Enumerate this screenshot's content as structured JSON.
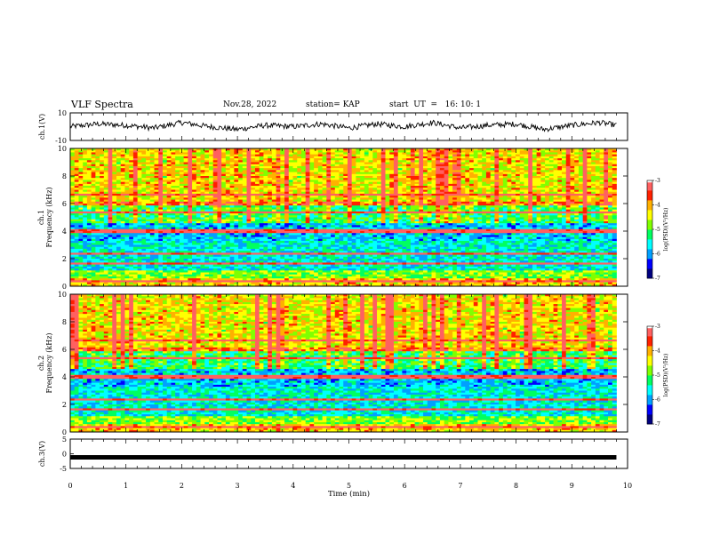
{
  "header": {
    "title": "VLF Spectra",
    "date": "Nov.28, 2022",
    "station": "station= KAP",
    "start": "start  UT  =   16: 10: 1"
  },
  "colors": {
    "colormap": [
      "#000080",
      "#0000ff",
      "#00a0ff",
      "#00ffff",
      "#00ff60",
      "#80ff00",
      "#ffff00",
      "#ffb000",
      "#ff2000",
      "#ff6060",
      "#ffffff"
    ],
    "trace": "#000000"
  },
  "chart_data": [
    {
      "type": "line",
      "panel": "ch1",
      "ylabel": "ch.1(V)",
      "ylim": [
        -10,
        10
      ],
      "yticks": [
        "10",
        "-10"
      ],
      "xlim": [
        0,
        10
      ],
      "description_values": "waveform oscillating roughly between -5 and 5 V over 0-9.8 min",
      "x": [
        0,
        0.5,
        1,
        1.5,
        2,
        2.5,
        3,
        3.5,
        4,
        4.5,
        5,
        5.5,
        6,
        6.5,
        7,
        7.5,
        8,
        8.5,
        9,
        9.5,
        9.8
      ],
      "y": [
        0,
        2,
        1,
        -1,
        3,
        0,
        -2,
        1,
        0,
        2,
        -1,
        2,
        0,
        3,
        -1,
        1,
        2,
        -2,
        1,
        3,
        1
      ]
    },
    {
      "type": "heatmap",
      "panel": "ch1-spectrogram",
      "ylabel": "Frequency (kHz)",
      "channel_label": "ch.1",
      "ylim": [
        0,
        10
      ],
      "yticks": [
        "0",
        "2",
        "4",
        "6",
        "8",
        "10"
      ],
      "xlim": [
        0,
        10
      ],
      "colorbar": {
        "label": "log(PSD)(V²/Hz)",
        "range": [
          -7,
          -3
        ],
        "ticks": [
          "-3",
          "-4",
          "-5",
          "-6",
          "-7"
        ]
      }
    },
    {
      "type": "heatmap",
      "panel": "ch2-spectrogram",
      "ylabel": "Frequency (kHz)",
      "channel_label": "ch.2",
      "ylim": [
        0,
        10
      ],
      "yticks": [
        "0",
        "2",
        "4",
        "6",
        "8",
        "10"
      ],
      "xlim": [
        0,
        10
      ],
      "colorbar": {
        "label": "log(PSD)(V²/Hz)",
        "range": [
          -7,
          -3
        ],
        "ticks": [
          "-3",
          "-4",
          "-5",
          "-6",
          "-7"
        ]
      }
    },
    {
      "type": "line",
      "panel": "ch3",
      "ylabel": "ch.3(V)",
      "ylim": [
        -5,
        5
      ],
      "yticks": [
        "5",
        "0",
        "-5"
      ],
      "xlim": [
        0,
        10
      ],
      "x": [
        0,
        9.8
      ],
      "y": [
        -1.2,
        -1.2
      ]
    }
  ],
  "xaxis": {
    "label": "Time (min)",
    "ticks": [
      "0",
      "1",
      "2",
      "3",
      "4",
      "5",
      "6",
      "7",
      "8",
      "9",
      "10"
    ]
  }
}
